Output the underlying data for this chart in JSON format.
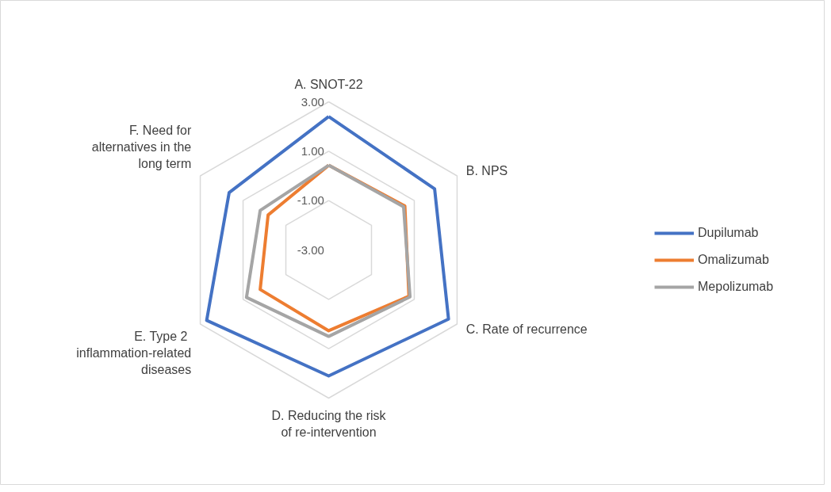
{
  "chart_data": {
    "type": "radar",
    "categories": [
      "A. SNOT-22",
      "B. NPS",
      "C. Rate of recurrence",
      "D. Reducing the risk of re-intervention",
      "E.  Type 2 inflammation-related diseases",
      "F. Need for alternatives in the long term"
    ],
    "series": [
      {
        "name": "Dupilumab",
        "color": "#4472c4",
        "values": [
          2.4,
          1.95,
          2.6,
          2.1,
          2.7,
          1.65
        ]
      },
      {
        "name": "Omalizumab",
        "color": "#ed7d31",
        "values": [
          0.43,
          0.56,
          0.75,
          0.27,
          0.2,
          -0.17
        ]
      },
      {
        "name": "Mepolizumab",
        "color": "#a5a5a5",
        "values": [
          0.43,
          0.5,
          0.8,
          0.5,
          0.84,
          0.2
        ]
      }
    ],
    "ylim": [
      -3,
      3
    ],
    "yticks": [
      {
        "value": -3,
        "label": "-3.00"
      },
      {
        "value": -1,
        "label": "-1.00"
      },
      {
        "value": 1,
        "label": "1.00"
      },
      {
        "value": 3,
        "label": "3.00"
      }
    ],
    "grid": true,
    "legend": "right",
    "marker": "none",
    "line_style": "solid"
  }
}
